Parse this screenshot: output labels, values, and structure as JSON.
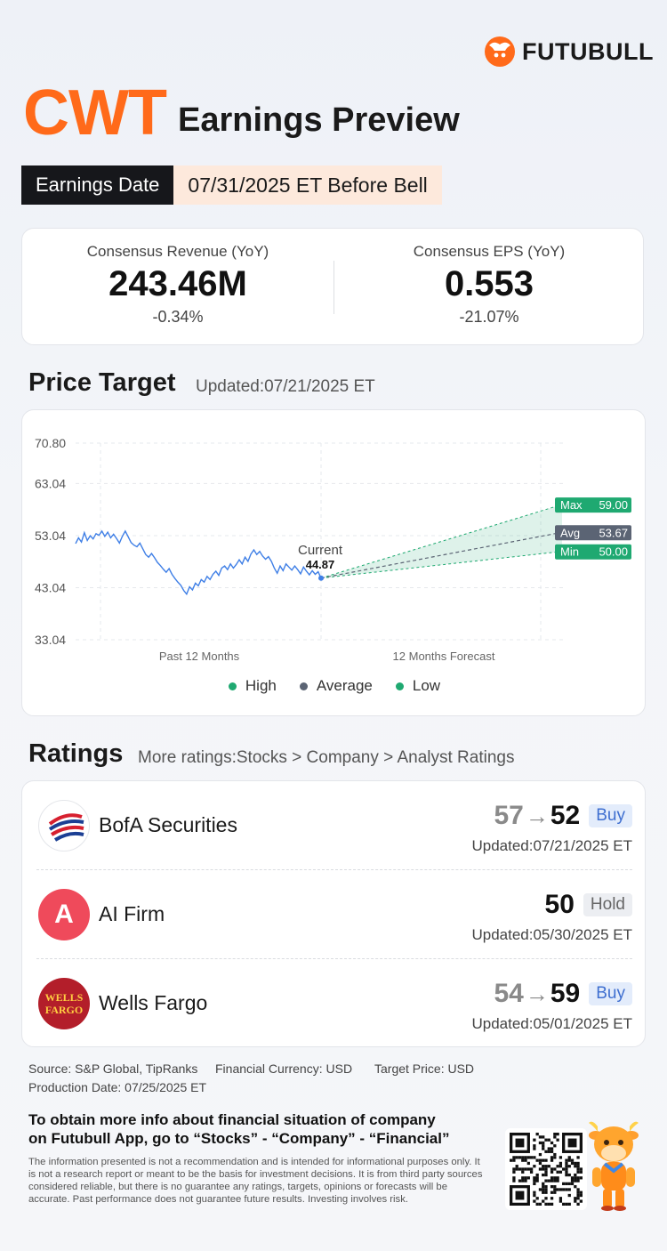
{
  "brand": {
    "name": "FUTUBULL"
  },
  "header": {
    "ticker": "CWT",
    "title": "Earnings Preview"
  },
  "earnings_date": {
    "label": "Earnings Date",
    "value": "07/31/2025 ET Before Bell"
  },
  "consensus": {
    "revenue": {
      "label": "Consensus Revenue (YoY)",
      "value": "243.46M",
      "change": "-0.34%"
    },
    "eps": {
      "label": "Consensus EPS (YoY)",
      "value": "0.553",
      "change": "-21.07%"
    }
  },
  "price_target": {
    "title": "Price Target",
    "updated": "Updated:07/21/2025 ET"
  },
  "chart_data": {
    "type": "line",
    "yticks": [
      "70.80",
      "63.04",
      "53.04",
      "43.04",
      "33.04"
    ],
    "ylim": [
      33.04,
      70.8
    ],
    "xlabels": [
      "Past 12 Months",
      "12 Months Forecast"
    ],
    "current": {
      "label": "Current",
      "value": 44.87
    },
    "forecast": {
      "max": 59.0,
      "avg": 53.67,
      "min": 50.0
    },
    "forecast_labels": {
      "max": "Max",
      "avg": "Avg",
      "min": "Min"
    },
    "forecast_values": {
      "max": "59.00",
      "avg": "53.67",
      "min": "50.00"
    },
    "history": [
      51.5,
      52.6,
      51.8,
      53.6,
      52.1,
      53.0,
      52.4,
      53.4,
      53.1,
      53.9,
      52.9,
      53.7,
      52.6,
      53.3,
      52.5,
      51.6,
      52.9,
      53.9,
      52.8,
      51.7,
      51.2,
      50.9,
      51.6,
      50.5,
      49.4,
      48.9,
      49.6,
      48.8,
      47.9,
      47.3,
      46.6,
      46.0,
      46.7,
      45.6,
      44.8,
      44.1,
      43.5,
      42.5,
      41.8,
      43.2,
      42.6,
      43.9,
      43.4,
      44.6,
      44.1,
      45.2,
      44.6,
      45.6,
      46.2,
      45.4,
      46.8,
      47.2,
      46.5,
      47.6,
      46.8,
      47.5,
      48.4,
      47.6,
      48.9,
      48.1,
      49.5,
      50.3,
      49.4,
      50.0,
      49.1,
      48.5,
      49.0,
      48.1,
      46.8,
      45.8,
      47.2,
      46.3,
      47.6,
      47.0,
      46.4,
      47.2,
      46.5,
      45.7,
      47.0,
      46.2,
      45.5,
      46.3,
      45.6,
      46.1,
      44.87
    ],
    "legend": [
      {
        "name": "High",
        "color": "#1fa971"
      },
      {
        "name": "Average",
        "color": "#5b6474"
      },
      {
        "name": "Low",
        "color": "#1fa971"
      }
    ]
  },
  "ratings": {
    "title": "Ratings",
    "more": "More ratings:Stocks > Company > Analyst Ratings",
    "items": [
      {
        "firm": "BofA Securities",
        "old": "57",
        "arrow": "→",
        "new": "52",
        "rating": "Buy",
        "updated": "Updated:07/21/2025 ET"
      },
      {
        "firm": "AI Firm",
        "old": "",
        "arrow": "",
        "new": "50",
        "rating": "Hold",
        "updated": "Updated:05/30/2025 ET",
        "logo_letter": "A"
      },
      {
        "firm": "Wells Fargo",
        "old": "54",
        "arrow": "→",
        "new": "59",
        "rating": "Buy",
        "updated": "Updated:05/01/2025 ET",
        "logo_text_1": "WELLS",
        "logo_text_2": "FARGO"
      }
    ]
  },
  "footer": {
    "source": "Source: S&P Global, TipRanks",
    "currency": "Financial Currency: USD",
    "target_price": "Target Price: USD",
    "production": "Production Date: 07/25/2025 ET",
    "cta_1": "To obtain more info about financial situation of company",
    "cta_2": "on Futubull App, go to “Stocks” - “Company” - “Financial”",
    "disclaimer": "The information presented is not a recommendation and is intended for informational purposes only. It is not a research report or meant to be the basis for investment decisions. It is from third party sources considered reliable, but there is no guarantee any ratings, targets, opinions or forecasts will be accurate. Past performance does not guarantee future results. Investing involves risk."
  }
}
